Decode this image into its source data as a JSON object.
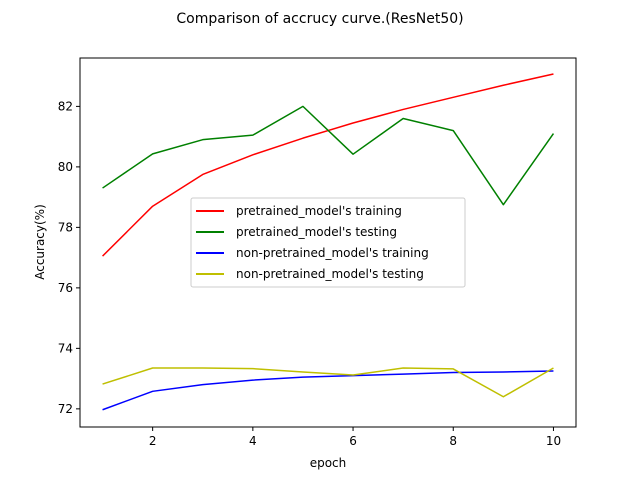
{
  "chart_data": {
    "type": "line",
    "title": "Comparison of accrucy curve.(ResNet50)",
    "xlabel": "epoch",
    "ylabel": "Accuracy(%)",
    "x": [
      1,
      2,
      3,
      4,
      5,
      6,
      7,
      8,
      9,
      10
    ],
    "xticks": [
      2,
      4,
      6,
      8,
      10
    ],
    "yticks": [
      72,
      74,
      76,
      78,
      80,
      82
    ],
    "xlim": [
      0.55,
      10.45
    ],
    "ylim": [
      71.4,
      83.6
    ],
    "grid": false,
    "legend_position": "center",
    "series": [
      {
        "name": "pretrained_model's training",
        "color": "#ff0000",
        "values": [
          77.05,
          78.7,
          79.75,
          80.4,
          80.95,
          81.45,
          81.9,
          82.3,
          82.7,
          83.07
        ]
      },
      {
        "name": "pretrained_model's testing",
        "color": "#008000",
        "values": [
          79.3,
          80.43,
          80.9,
          81.05,
          82.0,
          80.42,
          81.6,
          81.2,
          78.75,
          81.1
        ]
      },
      {
        "name": "non-pretrained_model's training",
        "color": "#0000ff",
        "values": [
          71.97,
          72.58,
          72.8,
          72.95,
          73.05,
          73.1,
          73.15,
          73.2,
          73.22,
          73.25
        ]
      },
      {
        "name": "non-pretrained_model's testing",
        "color": "#bfbf00",
        "values": [
          72.82,
          73.35,
          73.35,
          73.33,
          73.22,
          73.12,
          73.35,
          73.32,
          72.4,
          73.35
        ]
      }
    ]
  }
}
